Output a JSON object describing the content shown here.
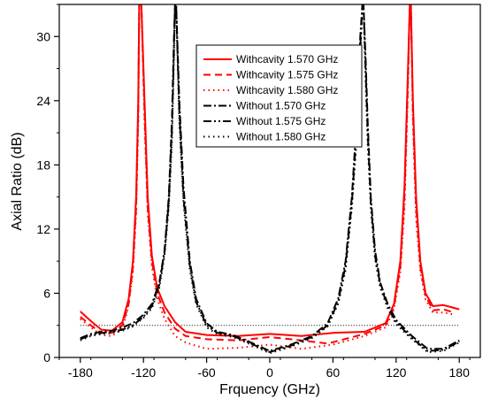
{
  "chart_data": {
    "type": "line",
    "title": "",
    "xlabel": "Frquency (GHz)",
    "ylabel": "Axial Ratio (dB)",
    "xlim": [
      -200,
      200
    ],
    "ylim": [
      0,
      33
    ],
    "x_ticks": [
      -180,
      -120,
      -60,
      0,
      60,
      120,
      180
    ],
    "y_ticks": [
      0,
      6,
      12,
      18,
      24,
      30
    ],
    "grid": false,
    "legend_position": "top-center",
    "reference_line": {
      "y": 3,
      "style": "dotted"
    },
    "series": [
      {
        "name": "Withcavity 1.570 GHz",
        "color": "#ff0000",
        "dash": "solid",
        "x": [
          -180,
          -170,
          -160,
          -150,
          -140,
          -134,
          -130,
          -127,
          -125,
          -124,
          -122,
          -119,
          -116,
          -112,
          -107,
          -100,
          -90,
          -80,
          -60,
          -30,
          0,
          30,
          60,
          90,
          110,
          118,
          124,
          128,
          131,
          133,
          134,
          136,
          139,
          143,
          148,
          155,
          165,
          180
        ],
        "y": [
          4.3,
          3.4,
          2.6,
          2.5,
          3.3,
          5.5,
          9,
          15,
          24,
          33,
          33,
          24,
          15,
          9.5,
          6.5,
          4.8,
          3.3,
          2.4,
          2.1,
          2.0,
          2.2,
          2.0,
          2.3,
          2.4,
          3.2,
          5.0,
          9.0,
          16,
          26,
          33,
          33,
          24,
          15,
          9,
          6,
          4.8,
          4.9,
          4.5
        ]
      },
      {
        "name": "Withcavity 1.575 GHz",
        "color": "#ff0000",
        "dash": "dashed",
        "x": [
          -180,
          -170,
          -160,
          -150,
          -140,
          -134,
          -130,
          -127,
          -125,
          -124,
          -122,
          -119,
          -116,
          -112,
          -107,
          -100,
          -90,
          -80,
          -60,
          -30,
          0,
          30,
          55,
          90,
          110,
          118,
          124,
          128,
          131,
          133,
          134,
          136,
          139,
          143,
          148,
          155,
          165,
          175
        ],
        "y": [
          3.8,
          3.0,
          2.3,
          2.3,
          3.0,
          5.0,
          8.5,
          14,
          23,
          33,
          33,
          23,
          14,
          9,
          6,
          4.2,
          2.7,
          2.0,
          1.7,
          1.6,
          1.9,
          1.6,
          1.3,
          2.2,
          3.0,
          4.8,
          8.5,
          15,
          25,
          33,
          33,
          23,
          14,
          8.5,
          5.8,
          4.4,
          4.5,
          4.2
        ]
      },
      {
        "name": "Withcavity 1.580 GHz",
        "color": "#ff0000",
        "dash": "dotted",
        "x": [
          -180,
          -170,
          -160,
          -150,
          -140,
          -135,
          -130,
          -127,
          -125,
          -124,
          -122,
          -119,
          -116,
          -112,
          -107,
          -100,
          -90,
          -80,
          -60,
          -30,
          0,
          30,
          60,
          90,
          110,
          118,
          124,
          128,
          131,
          133,
          134,
          136,
          139,
          143,
          148,
          155,
          165,
          175
        ],
        "y": [
          3.6,
          2.8,
          2.1,
          2.0,
          2.7,
          4.5,
          8,
          13.5,
          22,
          33,
          33,
          22,
          13.5,
          8.5,
          5.5,
          3.6,
          2.0,
          1.4,
          0.8,
          0.9,
          1.2,
          0.8,
          1.2,
          2.0,
          2.8,
          4.5,
          8,
          14,
          24,
          33,
          33,
          22,
          13,
          8,
          5.4,
          4.2,
          4.2,
          4.0
        ]
      },
      {
        "name": "Without    1.570 GHz",
        "color": "#000000",
        "dash": "dash-dot",
        "x": [
          -180,
          -170,
          -160,
          -150,
          -140,
          -130,
          -120,
          -112,
          -105,
          -100,
          -96,
          -93,
          -91,
          -90,
          -89,
          -86,
          -82,
          -76,
          -70,
          -60,
          -50,
          -35,
          -20,
          0,
          20,
          40,
          55,
          65,
          72,
          78,
          83,
          86,
          88,
          89,
          91,
          93,
          96,
          100,
          105,
          112,
          120,
          135,
          150,
          165,
          180
        ],
        "y": [
          1.8,
          2.2,
          2.4,
          2.5,
          2.8,
          3.2,
          4.0,
          5.0,
          7.0,
          10,
          15,
          22,
          30,
          33,
          33,
          24,
          16,
          9,
          5.5,
          3.2,
          2.4,
          2.1,
          1.5,
          0.6,
          1.2,
          2.0,
          3.2,
          5.5,
          9,
          15,
          23,
          30,
          33,
          33,
          28,
          22,
          15,
          10,
          7,
          5,
          3.5,
          2.0,
          0.8,
          0.8,
          1.6
        ]
      },
      {
        "name": "Without    1.575 GHz",
        "color": "#000000",
        "dash": "dash-dot-dot",
        "x": [
          -180,
          -170,
          -160,
          -150,
          -140,
          -130,
          -120,
          -112,
          -105,
          -100,
          -96,
          -93,
          -91,
          -90,
          -89,
          -86,
          -82,
          -76,
          -70,
          -60,
          -50,
          -35,
          -20,
          0,
          20,
          40,
          55,
          65,
          72,
          78,
          83,
          86,
          88,
          89,
          91,
          93,
          96,
          100,
          105,
          112,
          120,
          135,
          150,
          165,
          180
        ],
        "y": [
          1.7,
          2.1,
          2.3,
          2.4,
          2.6,
          3.0,
          3.8,
          4.8,
          6.8,
          9.8,
          14.5,
          21,
          29,
          33,
          33,
          23,
          15,
          8.6,
          5.2,
          3.0,
          2.3,
          2.0,
          1.4,
          0.5,
          1.1,
          1.9,
          3.0,
          5.2,
          8.6,
          14.5,
          22,
          29,
          33,
          33,
          27,
          21,
          14.5,
          9.5,
          6.8,
          4.8,
          3.3,
          1.8,
          0.6,
          0.7,
          1.5
        ]
      },
      {
        "name": "Without    1.580 GHz",
        "color": "#000000",
        "dash": "dotted",
        "x": [
          -180,
          -170,
          -160,
          -150,
          -140,
          -130,
          -120,
          -112,
          -105,
          -100,
          -96,
          -93,
          -91,
          -90,
          -89,
          -86,
          -82,
          -76,
          -70,
          -60,
          -50,
          -35,
          -20,
          0,
          20,
          40,
          55,
          65,
          72,
          78,
          83,
          86,
          88,
          89,
          91,
          93,
          96,
          100,
          105,
          112,
          120,
          135,
          150,
          165,
          180
        ],
        "y": [
          1.6,
          2.0,
          2.2,
          2.3,
          2.5,
          2.9,
          3.7,
          4.6,
          6.5,
          9.5,
          14,
          20,
          28,
          33,
          33,
          22,
          14.5,
          8.2,
          5.0,
          2.8,
          2.2,
          1.9,
          1.3,
          0.4,
          1.0,
          1.8,
          2.9,
          5.0,
          8.2,
          14,
          21,
          28,
          33,
          33,
          26,
          20,
          14,
          9.2,
          6.5,
          4.6,
          3.1,
          1.7,
          0.5,
          0.6,
          1.4
        ]
      }
    ]
  }
}
